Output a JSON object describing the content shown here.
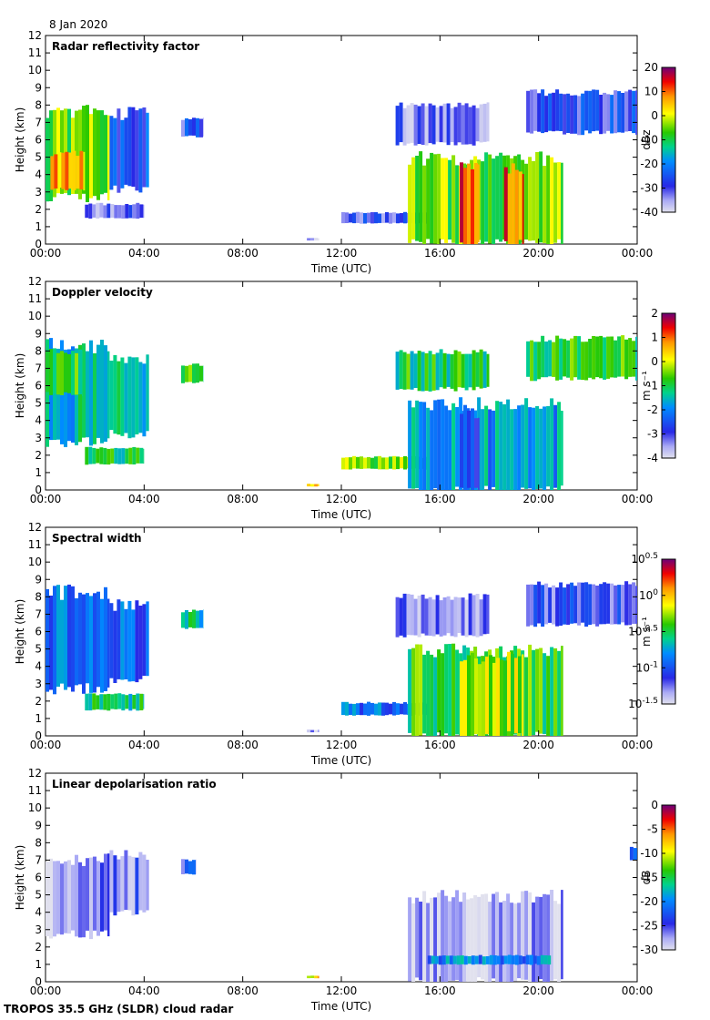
{
  "date": "8 Jan 2020",
  "footer": "TROPOS 35.5 GHz (SLDR) cloud radar",
  "chart_data": [
    {
      "type": "heatmap",
      "title": "Radar reflectivity factor",
      "xlabel": "Time (UTC)",
      "ylabel": "Height (km)",
      "x_ticks": [
        "00:00",
        "04:00",
        "08:00",
        "12:00",
        "16:00",
        "20:00",
        "00:00"
      ],
      "xlim": [
        0,
        24
      ],
      "ylim": [
        0,
        12
      ],
      "y_ticks": [
        0,
        1,
        2,
        3,
        4,
        5,
        6,
        7,
        8,
        9,
        10,
        11,
        12
      ],
      "colorbar": {
        "label": "dBz",
        "min": -40,
        "max": 20,
        "ticks": [
          {
            "v": 20,
            "label": "20"
          },
          {
            "v": 10,
            "label": "10"
          },
          {
            "v": 0,
            "label": "0"
          },
          {
            "v": -10,
            "label": "-10"
          },
          {
            "v": -20,
            "label": "-20"
          },
          {
            "v": -30,
            "label": "-30"
          },
          {
            "v": -40,
            "label": "-40"
          }
        ]
      },
      "regions": [
        {
          "t0": 0.0,
          "t1": 2.6,
          "h0": 2.7,
          "h1": 7.6,
          "v": -5
        },
        {
          "t0": 0.2,
          "t1": 1.6,
          "h0": 3.2,
          "h1": 5.2,
          "v": 5
        },
        {
          "t0": 2.6,
          "t1": 4.2,
          "h0": 3.2,
          "h1": 7.5,
          "v": -25
        },
        {
          "t0": 1.6,
          "t1": 4.0,
          "h0": 1.5,
          "h1": 2.3,
          "v": -32
        },
        {
          "t0": 5.5,
          "t1": 6.4,
          "h0": 6.2,
          "h1": 7.2,
          "v": -28
        },
        {
          "t0": 10.6,
          "t1": 11.1,
          "h0": 0.2,
          "h1": 0.35,
          "v": -38
        },
        {
          "t0": 12.0,
          "t1": 15.5,
          "h0": 1.2,
          "h1": 1.8,
          "v": -30
        },
        {
          "t0": 14.7,
          "t1": 21.0,
          "h0": 0.0,
          "h1": 4.9,
          "v": -5
        },
        {
          "t0": 16.8,
          "t1": 17.6,
          "h0": 0.0,
          "h1": 4.5,
          "v": 12
        },
        {
          "t0": 18.6,
          "t1": 19.4,
          "h0": 0.0,
          "h1": 4.4,
          "v": 10
        },
        {
          "t0": 14.2,
          "t1": 18.0,
          "h0": 5.8,
          "h1": 8.0,
          "v": -33
        },
        {
          "t0": 19.5,
          "t1": 24.0,
          "h0": 6.4,
          "h1": 8.7,
          "v": -28
        }
      ]
    },
    {
      "type": "heatmap",
      "title": "Doppler velocity",
      "xlabel": "Time (UTC)",
      "ylabel": "Height (km)",
      "x_ticks": [
        "00:00",
        "04:00",
        "08:00",
        "12:00",
        "16:00",
        "20:00",
        "00:00"
      ],
      "xlim": [
        0,
        24
      ],
      "ylim": [
        0,
        12
      ],
      "y_ticks": [
        0,
        1,
        2,
        3,
        4,
        5,
        6,
        7,
        8,
        9,
        10,
        11,
        12
      ],
      "colorbar": {
        "label": "m s⁻¹",
        "min": -4,
        "max": 2,
        "ticks": [
          {
            "v": 2,
            "label": "2"
          },
          {
            "v": 1,
            "label": "1"
          },
          {
            "v": 0,
            "label": "0"
          },
          {
            "v": -1,
            "label": "-1"
          },
          {
            "v": -2,
            "label": "-2"
          },
          {
            "v": -3,
            "label": "-3"
          },
          {
            "v": -4,
            "label": "-4"
          }
        ]
      },
      "regions": [
        {
          "t0": 0.0,
          "t1": 2.6,
          "h0": 2.7,
          "h1": 8.3,
          "v": -1.5
        },
        {
          "t0": 0.0,
          "t1": 1.5,
          "h0": 5.5,
          "h1": 8.0,
          "v": -0.9
        },
        {
          "t0": 2.6,
          "t1": 4.2,
          "h0": 3.2,
          "h1": 7.5,
          "v": -1.4
        },
        {
          "t0": 1.6,
          "t1": 4.0,
          "h0": 1.5,
          "h1": 2.4,
          "v": -1.0
        },
        {
          "t0": 5.5,
          "t1": 6.4,
          "h0": 6.2,
          "h1": 7.2,
          "v": -0.9
        },
        {
          "t0": 10.6,
          "t1": 11.1,
          "h0": 0.2,
          "h1": 0.35,
          "v": 0.2
        },
        {
          "t0": 12.0,
          "t1": 15.5,
          "h0": 1.2,
          "h1": 1.9,
          "v": -0.4
        },
        {
          "t0": 14.7,
          "t1": 21.0,
          "h0": 0.0,
          "h1": 4.9,
          "v": -1.8
        },
        {
          "t0": 16.8,
          "t1": 17.6,
          "h0": 0.0,
          "h1": 4.5,
          "v": -2.4
        },
        {
          "t0": 14.2,
          "t1": 18.0,
          "h0": 5.8,
          "h1": 8.0,
          "v": -1.0
        },
        {
          "t0": 19.5,
          "t1": 24.0,
          "h0": 6.4,
          "h1": 8.7,
          "v": -0.9
        }
      ]
    },
    {
      "type": "heatmap",
      "title": "Spectral width",
      "xlabel": "Time (UTC)",
      "ylabel": "Height (km)",
      "x_ticks": [
        "00:00",
        "04:00",
        "08:00",
        "12:00",
        "16:00",
        "20:00",
        "00:00"
      ],
      "xlim": [
        0,
        24
      ],
      "ylim": [
        0,
        12
      ],
      "y_ticks": [
        0,
        1,
        2,
        3,
        4,
        5,
        6,
        7,
        8,
        9,
        10,
        11,
        12
      ],
      "colorbar": {
        "label": "m s⁻¹",
        "min": -1.5,
        "max": 0.5,
        "ticks": [
          {
            "v": 0.5,
            "label": "10^0.5"
          },
          {
            "v": 0,
            "label": "10^0"
          },
          {
            "v": -0.5,
            "label": "10^-0.5"
          },
          {
            "v": -1,
            "label": "10^-1"
          },
          {
            "v": -1.5,
            "label": "10^-1.5"
          }
        ]
      },
      "regions": [
        {
          "t0": 0.0,
          "t1": 2.6,
          "h0": 2.7,
          "h1": 8.3,
          "v": -0.9
        },
        {
          "t0": 2.6,
          "t1": 4.2,
          "h0": 3.2,
          "h1": 7.5,
          "v": -0.95
        },
        {
          "t0": 1.6,
          "t1": 4.0,
          "h0": 1.5,
          "h1": 2.4,
          "v": -0.55
        },
        {
          "t0": 5.5,
          "t1": 6.4,
          "h0": 6.2,
          "h1": 7.2,
          "v": -0.6
        },
        {
          "t0": 10.6,
          "t1": 11.1,
          "h0": 0.2,
          "h1": 0.35,
          "v": -1.4
        },
        {
          "t0": 12.0,
          "t1": 15.5,
          "h0": 1.2,
          "h1": 1.9,
          "v": -0.9
        },
        {
          "t0": 14.7,
          "t1": 21.0,
          "h0": 0.0,
          "h1": 4.9,
          "v": -0.45
        },
        {
          "t0": 16.8,
          "t1": 19.4,
          "h0": 0.0,
          "h1": 4.5,
          "v": -0.25
        },
        {
          "t0": 14.2,
          "t1": 18.0,
          "h0": 5.8,
          "h1": 8.0,
          "v": -1.25
        },
        {
          "t0": 19.5,
          "t1": 24.0,
          "h0": 6.4,
          "h1": 8.7,
          "v": -1.15
        }
      ]
    },
    {
      "type": "heatmap",
      "title": "Linear depolarisation ratio",
      "xlabel": "Time (UTC)",
      "ylabel": "Height (km)",
      "x_ticks": [
        "00:00",
        "04:00",
        "08:00",
        "12:00",
        "16:00",
        "20:00",
        "00:00"
      ],
      "xlim": [
        0,
        24
      ],
      "ylim": [
        0,
        12
      ],
      "y_ticks": [
        0,
        1,
        2,
        3,
        4,
        5,
        6,
        7,
        8,
        9,
        10,
        11,
        12
      ],
      "colorbar": {
        "label": "dB",
        "min": -30,
        "max": 0,
        "ticks": [
          {
            "v": 0,
            "label": "0"
          },
          {
            "v": -5,
            "label": "-5"
          },
          {
            "v": -10,
            "label": "-10"
          },
          {
            "v": -15,
            "label": "-15"
          },
          {
            "v": -20,
            "label": "-20"
          },
          {
            "v": -25,
            "label": "-25"
          },
          {
            "v": -30,
            "label": "-30"
          }
        ]
      },
      "regions": [
        {
          "t0": 0.0,
          "t1": 2.6,
          "h0": 2.7,
          "h1": 7.0,
          "v": -27
        },
        {
          "t0": 2.6,
          "t1": 4.2,
          "h0": 4.0,
          "h1": 7.3,
          "v": -26
        },
        {
          "t0": 5.5,
          "t1": 6.1,
          "h0": 6.2,
          "h1": 7.0,
          "v": -24
        },
        {
          "t0": 10.6,
          "t1": 11.1,
          "h0": 0.2,
          "h1": 0.35,
          "v": -8
        },
        {
          "t0": 14.7,
          "t1": 21.0,
          "h0": 0.0,
          "h1": 4.9,
          "v": -28
        },
        {
          "t0": 15.5,
          "t1": 20.5,
          "h0": 1.0,
          "h1": 1.5,
          "v": -20
        },
        {
          "t0": 23.7,
          "t1": 24.0,
          "h0": 7.0,
          "h1": 7.7,
          "v": -22
        }
      ]
    }
  ]
}
